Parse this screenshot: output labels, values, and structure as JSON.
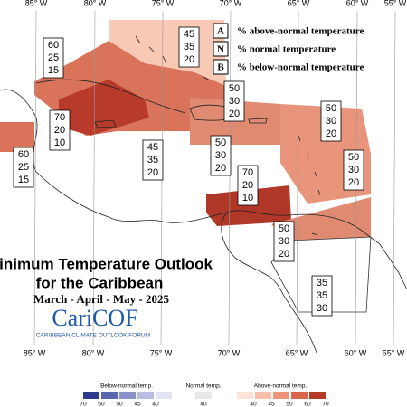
{
  "longitudes": [
    "85° W",
    "80° W",
    "75° W",
    "70° W",
    "65° W",
    "60° W",
    "55° W"
  ],
  "legend": [
    {
      "key": "A",
      "text": "% above-normal temperature"
    },
    {
      "key": "N",
      "text": "% normal temperature"
    },
    {
      "key": "B",
      "text": "% below-normal temperature"
    }
  ],
  "outlooks": [
    {
      "above": 45,
      "normal": 35,
      "below": 20
    },
    {
      "above": 60,
      "normal": 25,
      "below": 15
    },
    {
      "above": 50,
      "normal": 30,
      "below": 20
    },
    {
      "above": 50,
      "normal": 30,
      "below": 20
    },
    {
      "above": 70,
      "normal": 20,
      "below": 10
    },
    {
      "above": 45,
      "normal": 35,
      "below": 20
    },
    {
      "above": 50,
      "normal": 30,
      "below": 20
    },
    {
      "above": 60,
      "normal": 25,
      "below": 15
    },
    {
      "above": 50,
      "normal": 30,
      "below": 20
    },
    {
      "above": 70,
      "normal": 20,
      "below": 10
    },
    {
      "above": 50,
      "normal": 30,
      "below": 20
    },
    {
      "above": 35,
      "normal": 35,
      "below": 30
    }
  ],
  "title": "Minimum Temperature Outlook",
  "subtitle": "for the Caribbean",
  "season": "March - April - May - 2025",
  "logo": "CariCOF",
  "logo_caption": "CARIBBEAN CLIMATE OUTLOOK FORUM",
  "color_scale": {
    "below_title": "Below-normal temp.",
    "below_ticks": [
      70,
      60,
      50,
      45,
      40
    ],
    "normal_title": "Normal temp.",
    "normal_ticks": [
      40
    ],
    "above_title": "Above-normal temp.",
    "above_ticks": [
      40,
      45,
      50,
      60,
      70
    ]
  }
}
